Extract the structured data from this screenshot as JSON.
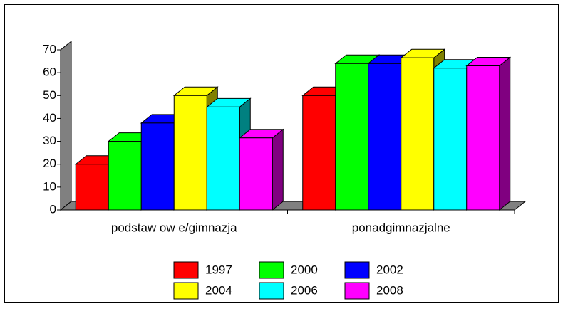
{
  "chart_data": {
    "type": "bar3d",
    "categories": [
      "podstaw ow e/gimnazja",
      "ponadgimnazjalne"
    ],
    "series": [
      {
        "name": "1997",
        "color": "#ff0000",
        "values": [
          20,
          50
        ]
      },
      {
        "name": "2000",
        "color": "#00ff00",
        "values": [
          30,
          64
        ]
      },
      {
        "name": "2002",
        "color": "#0000ff",
        "values": [
          38,
          64
        ]
      },
      {
        "name": "2004",
        "color": "#ffff00",
        "values": [
          50,
          66.5
        ]
      },
      {
        "name": "2006",
        "color": "#00ffff",
        "values": [
          45,
          62
        ]
      },
      {
        "name": "2008",
        "color": "#ff00ff",
        "values": [
          31.5,
          63
        ]
      }
    ],
    "ylim": [
      0,
      70
    ],
    "yticks": [
      0,
      10,
      20,
      30,
      40,
      50,
      60,
      70
    ],
    "legend": "bottom"
  }
}
